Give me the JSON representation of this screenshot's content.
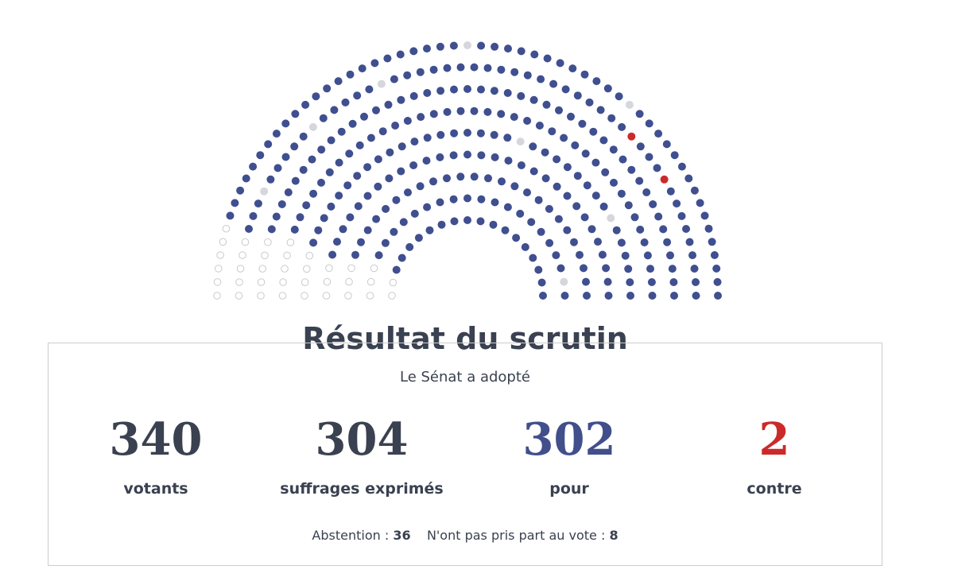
{
  "title": "Résultat du scrutin",
  "subtitle": "Le Sénat a adopté",
  "stats": [
    {
      "value": 340,
      "label": "votants"
    },
    {
      "value": 304,
      "label": "suffrages exprimés"
    },
    {
      "value": 302,
      "label": "pour"
    },
    {
      "value": 2,
      "label": "contre"
    }
  ],
  "footer": {
    "abstention_label": "Abstention :",
    "abstention": 36,
    "non_participation_label": "N'ont pas pris part au vote :",
    "non_participation": 8
  }
}
